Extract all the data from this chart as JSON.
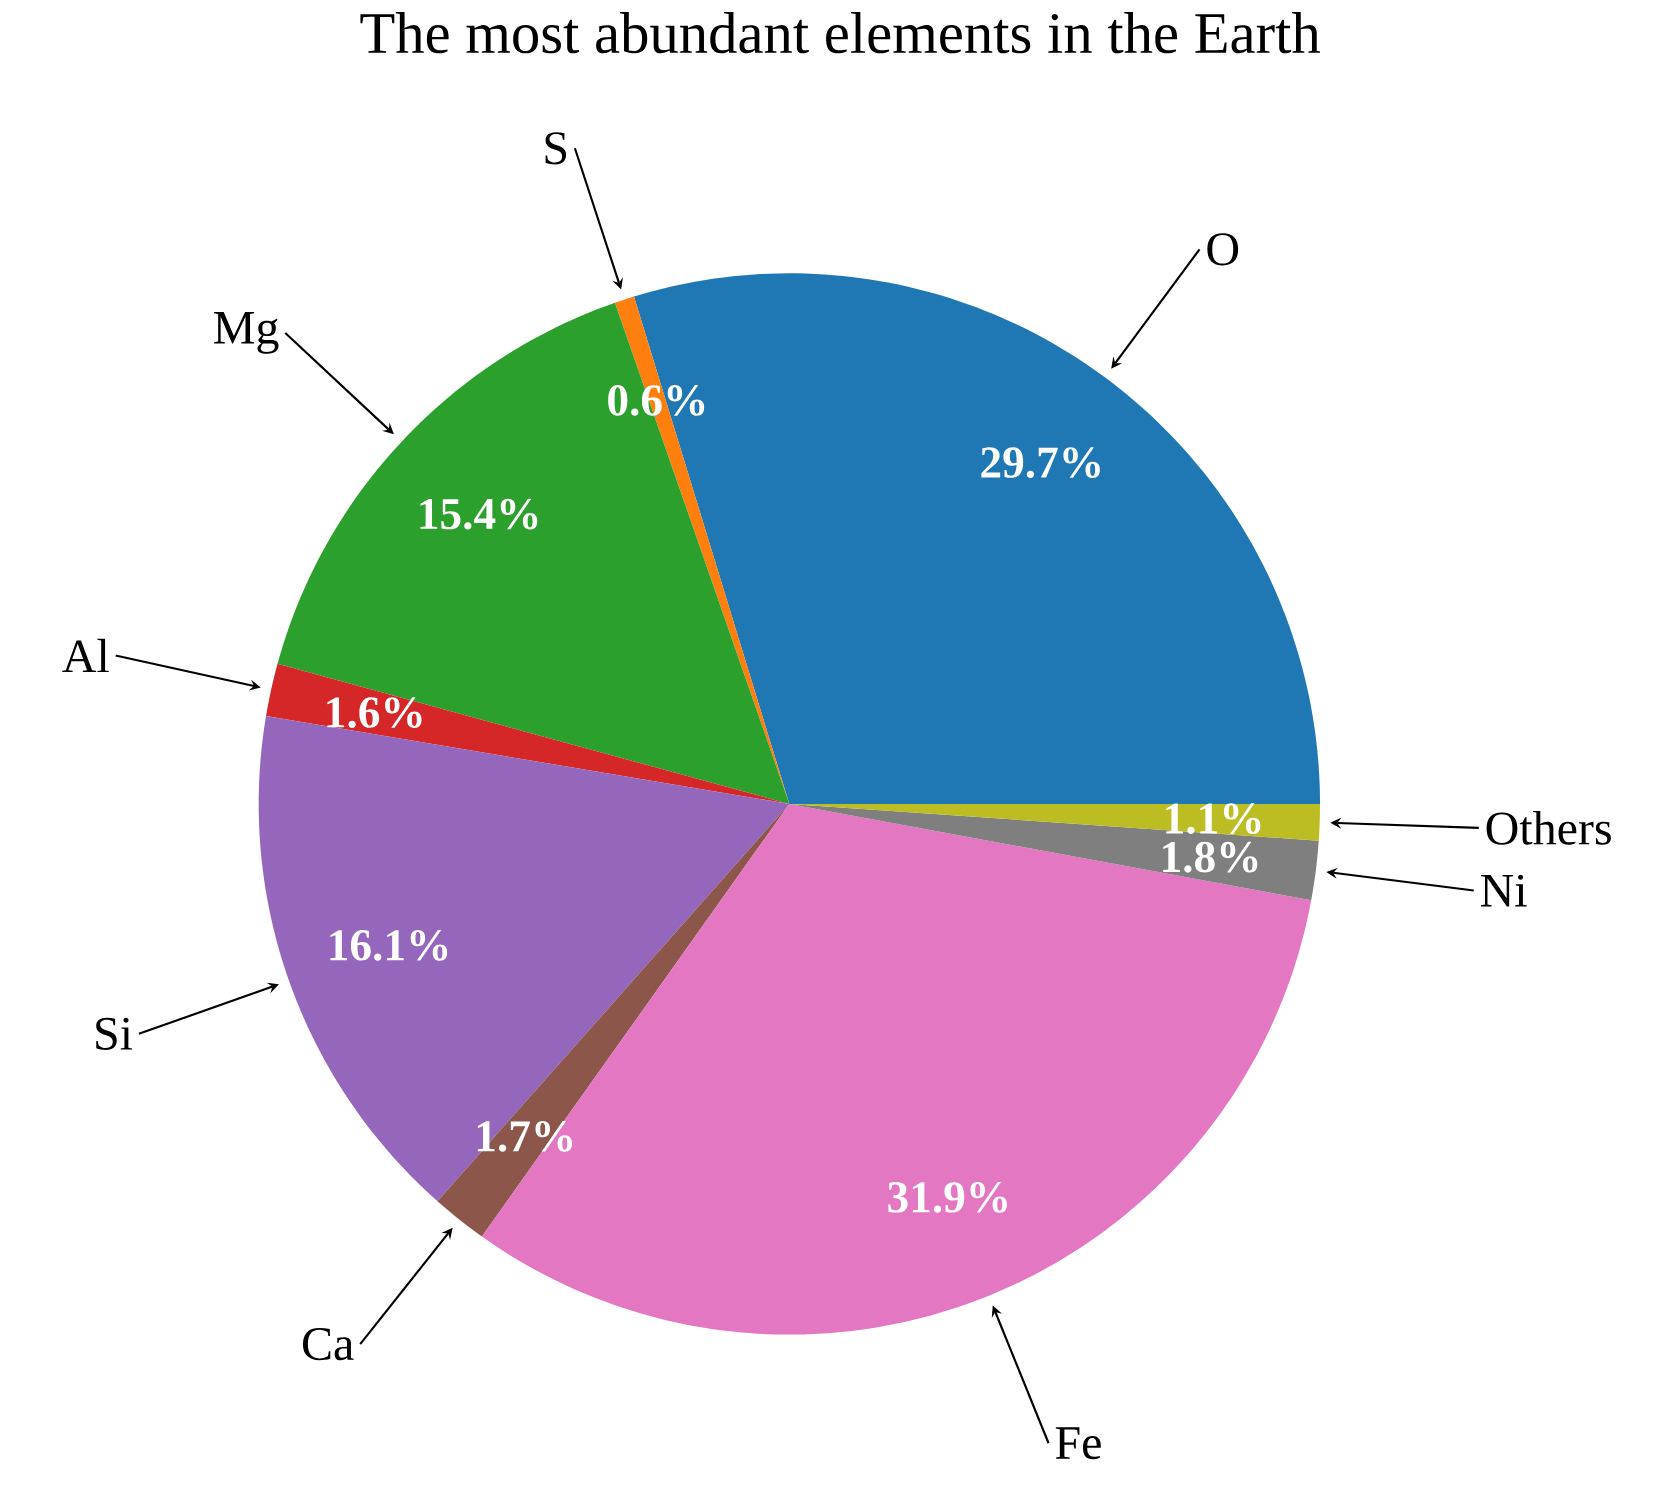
{
  "chart_data": {
    "type": "pie",
    "title": "The most abundant elements in the Earth",
    "categories": [
      "O",
      "S",
      "Mg",
      "Al",
      "Si",
      "Ca",
      "Fe",
      "Ni",
      "Others"
    ],
    "values": [
      29.7,
      0.6,
      15.4,
      1.6,
      16.1,
      1.7,
      31.9,
      1.8,
      1.1
    ],
    "colors": [
      "#1f77b4",
      "#ff7f0e",
      "#2ca02c",
      "#d62728",
      "#9467bd",
      "#8c564b",
      "#e377c2",
      "#7f7f7f",
      "#bcbd22"
    ],
    "value_labels": [
      "29.7%",
      "0.6%",
      "15.4%",
      "1.6%",
      "16.1%",
      "1.7%",
      "31.9%",
      "1.8%",
      "1.1%"
    ],
    "legend": false
  }
}
